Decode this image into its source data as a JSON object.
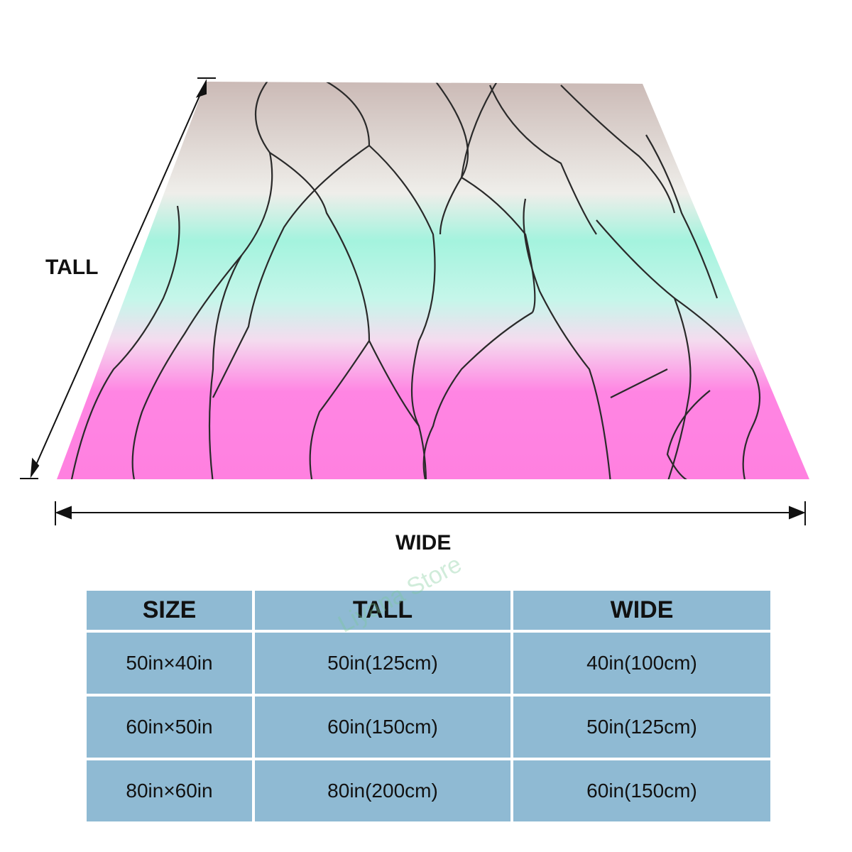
{
  "dimension_labels": {
    "tall": "TALL",
    "wide": "WIDE"
  },
  "watermark": "Liyana Store",
  "table": {
    "header": [
      "SIZE",
      "TALL",
      "WIDE"
    ],
    "rows": [
      [
        "50in×40in",
        "50in(125cm)",
        "40in(100cm)"
      ],
      [
        "60in×50in",
        "60in(150cm)",
        "50in(125cm)"
      ],
      [
        "80in×60in",
        "80in(200cm)",
        "60in(150cm)"
      ]
    ]
  }
}
